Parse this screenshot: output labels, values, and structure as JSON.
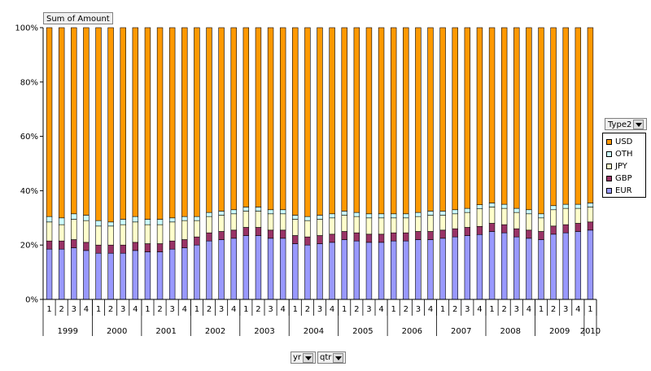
{
  "header": {
    "data_field_label": "Sum of Amount"
  },
  "legend": {
    "field_label": "Type2"
  },
  "axis_fields": [
    {
      "label": "yr"
    },
    {
      "label": "qtr"
    }
  ],
  "chart_data": {
    "type": "bar",
    "stacked": "percent",
    "title": "",
    "xlabel": "",
    "ylabel": "",
    "ylim": [
      0,
      100
    ],
    "y_ticks": [
      "0%",
      "20%",
      "40%",
      "60%",
      "80%",
      "100%"
    ],
    "gridlines": false,
    "legend_position": "right",
    "year_groups": [
      {
        "year": "1999",
        "quarters": [
          "1",
          "2",
          "3",
          "4"
        ]
      },
      {
        "year": "2000",
        "quarters": [
          "1",
          "2",
          "3",
          "4"
        ]
      },
      {
        "year": "2001",
        "quarters": [
          "1",
          "2",
          "3",
          "4"
        ]
      },
      {
        "year": "2002",
        "quarters": [
          "1",
          "2",
          "3",
          "4"
        ]
      },
      {
        "year": "2003",
        "quarters": [
          "1",
          "2",
          "3",
          "4"
        ]
      },
      {
        "year": "2004",
        "quarters": [
          "1",
          "2",
          "3",
          "4"
        ]
      },
      {
        "year": "2005",
        "quarters": [
          "1",
          "2",
          "3",
          "4"
        ]
      },
      {
        "year": "2006",
        "quarters": [
          "1",
          "2",
          "3",
          "4"
        ]
      },
      {
        "year": "2007",
        "quarters": [
          "1",
          "2",
          "3",
          "4"
        ]
      },
      {
        "year": "2008",
        "quarters": [
          "1",
          "2",
          "3",
          "4"
        ]
      },
      {
        "year": "2009",
        "quarters": [
          "1",
          "2",
          "3",
          "4"
        ]
      },
      {
        "year": "2010",
        "quarters": [
          "1"
        ]
      }
    ],
    "series": [
      {
        "name": "EUR",
        "color": "#9999ff",
        "values": [
          18.5,
          18.5,
          19,
          18,
          17,
          17,
          17,
          18,
          17.5,
          17.5,
          18.5,
          19,
          20,
          21.5,
          22,
          22.5,
          23.5,
          23.5,
          22.5,
          22.5,
          20.5,
          20,
          20.5,
          21,
          22,
          21.5,
          21,
          21,
          21.5,
          21.5,
          22,
          22,
          22.5,
          23,
          23.5,
          24,
          25,
          24.5,
          23,
          22.5,
          22,
          24,
          24.5,
          25,
          25.5
        ]
      },
      {
        "name": "GBP",
        "color": "#993366",
        "values": [
          3,
          3,
          3,
          3,
          3,
          3,
          3,
          3,
          3,
          3,
          3,
          3,
          3,
          3,
          3,
          3,
          3,
          3,
          3,
          3,
          3,
          3,
          3,
          3,
          3,
          3,
          3,
          3,
          3,
          3,
          3,
          3,
          3,
          3,
          3,
          3,
          3,
          3,
          3,
          3,
          3,
          3,
          3,
          3,
          3
        ]
      },
      {
        "name": "JPY",
        "color": "#ffffcc",
        "values": [
          7,
          6,
          7.5,
          8,
          7,
          7,
          7.5,
          7.5,
          7,
          7,
          7,
          7,
          6,
          6,
          6,
          6,
          6,
          6,
          6,
          6,
          6,
          6,
          6,
          6,
          6,
          6,
          6,
          6,
          5.5,
          5.5,
          5.5,
          6,
          5.5,
          5.5,
          5.5,
          6.5,
          6,
          6,
          6,
          6,
          5,
          6,
          6,
          5.5,
          5.5
        ]
      },
      {
        "name": "OTH",
        "color": "#ccffff",
        "values": [
          2,
          2.5,
          2,
          2,
          2,
          1.5,
          2,
          2,
          2,
          2,
          1.5,
          1.5,
          1.5,
          1.5,
          1.5,
          1.5,
          1.5,
          1.5,
          1.5,
          1.5,
          1.5,
          1.5,
          1.5,
          1.5,
          1.5,
          1.5,
          1.5,
          1.5,
          1.5,
          1.5,
          1.5,
          1.5,
          1.5,
          1.5,
          1.5,
          1.5,
          1.5,
          1.5,
          1.5,
          1.5,
          1.5,
          1.5,
          1.5,
          1.5,
          1.5
        ]
      },
      {
        "name": "USD",
        "color": "#ff9900",
        "values": [
          69.5,
          70,
          68.5,
          69,
          71,
          71.5,
          70.5,
          69.5,
          70.5,
          70.5,
          70,
          69.5,
          69.5,
          68,
          67.5,
          67,
          66,
          66,
          67,
          67,
          69,
          69.5,
          69,
          68.5,
          67.5,
          68,
          68.5,
          68.5,
          68.5,
          68.5,
          68,
          67.5,
          67.5,
          67,
          66.5,
          65.5,
          64.5,
          65,
          66.5,
          67,
          68.5,
          65.5,
          65,
          65,
          64.5
        ]
      }
    ]
  }
}
